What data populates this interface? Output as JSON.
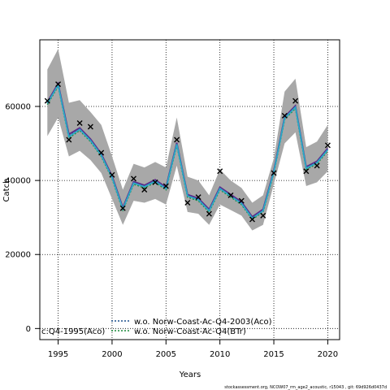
{
  "chart_data": {
    "type": "line",
    "title": "",
    "xlabel": "Years",
    "ylabel": "Catch",
    "xlim": [
      1993.3,
      2021.1
    ],
    "ylim": [
      -3000,
      78000
    ],
    "xticks": [
      1995,
      2000,
      2005,
      2010,
      2015,
      2020
    ],
    "yticks": [
      0,
      20000,
      40000,
      60000
    ],
    "grid": true,
    "band": {
      "years": [
        1994,
        1995,
        1996,
        1997,
        1998,
        1999,
        2000,
        2001,
        2002,
        2003,
        2004,
        2005,
        2006,
        2007,
        2008,
        2009,
        2010,
        2011,
        2012,
        2013,
        2014,
        2015,
        2016,
        2017,
        2018,
        2019,
        2020
      ],
      "upper": [
        70000,
        75500,
        61000,
        61700,
        58500,
        55000,
        46500,
        37500,
        44500,
        43500,
        45000,
        43500,
        57000,
        41000,
        40000,
        36000,
        43000,
        40000,
        38000,
        34000,
        36000,
        46000,
        64000,
        67500,
        49000,
        50500,
        55000
      ],
      "lower": [
        52000,
        57000,
        46500,
        48000,
        45500,
        42000,
        35000,
        28000,
        34500,
        34000,
        35000,
        33500,
        44000,
        31500,
        31000,
        28000,
        33500,
        32000,
        30500,
        26500,
        28000,
        39000,
        50000,
        53000,
        38500,
        39500,
        42500
      ]
    },
    "series": [
      {
        "name": "w.o. Norw-Coast-Ac-Q4-2003(Aco)",
        "color": "#1b4e8c",
        "style": "dotted",
        "years": [
          1994,
          1995,
          1996,
          1997,
          1998,
          1999,
          2000,
          2001,
          2002,
          2003,
          2004,
          2005,
          2006,
          2007,
          2008,
          2009,
          2010,
          2011,
          2012,
          2013,
          2014,
          2015,
          2016,
          2017,
          2018,
          2019,
          2020
        ],
        "values": [
          61000,
          66000,
          52000,
          54000,
          51000,
          47000,
          41000,
          32500,
          39500,
          38500,
          40000,
          38000,
          50000,
          36000,
          35000,
          32000,
          38000,
          36000,
          34000,
          30000,
          32000,
          42500,
          57000,
          60000,
          43500,
          45000,
          48500
        ]
      },
      {
        "name": "w.o. Norw-Coast-Ac-Q4(BTr)",
        "color": "#1a8a3a",
        "style": "dotted",
        "years": [
          1994,
          1995,
          1996,
          1997,
          1998,
          1999,
          2000,
          2001,
          2002,
          2003,
          2004,
          2005,
          2006,
          2007,
          2008,
          2009,
          2010,
          2011,
          2012,
          2013,
          2014,
          2015,
          2016,
          2017,
          2018,
          2019,
          2020
        ],
        "values": [
          60500,
          65500,
          51500,
          53500,
          50500,
          46500,
          40500,
          32000,
          39000,
          38000,
          39500,
          37500,
          49500,
          35500,
          34500,
          31500,
          37500,
          35500,
          33500,
          29500,
          31500,
          42000,
          56500,
          59500,
          43000,
          44500,
          48000
        ]
      },
      {
        "name": "c:Q4-1995(Aco)",
        "color": "#5a2a8a",
        "style": "solid",
        "years": [
          1994,
          1995,
          1996,
          1997,
          1998,
          1999,
          2000,
          2001,
          2002,
          2003,
          2004,
          2005,
          2006,
          2007,
          2008,
          2009,
          2010,
          2011,
          2012,
          2013,
          2014,
          2015,
          2016,
          2017,
          2018,
          2019,
          2020
        ],
        "values": [
          61200,
          66200,
          52500,
          54200,
          51200,
          47200,
          41200,
          32700,
          39700,
          38700,
          40200,
          38200,
          50200,
          36200,
          35200,
          32200,
          38200,
          36200,
          34200,
          30200,
          32200,
          42700,
          57200,
          60200,
          43700,
          45200,
          48700
        ]
      },
      {
        "name": "",
        "color": "#2aa8c8",
        "style": "solid",
        "years": [
          1994,
          1995,
          1996,
          1997,
          1998,
          1999,
          2000,
          2001,
          2002,
          2003,
          2004,
          2005,
          2006,
          2007,
          2008,
          2009,
          2010,
          2011,
          2012,
          2013,
          2014,
          2015,
          2016,
          2017,
          2018,
          2019,
          2020
        ],
        "values": [
          60800,
          65800,
          51800,
          53800,
          50800,
          46800,
          40800,
          32300,
          39300,
          38300,
          39800,
          37800,
          49800,
          35800,
          34800,
          31800,
          37800,
          35800,
          33800,
          29800,
          31800,
          42300,
          56800,
          59800,
          43300,
          44800,
          48300
        ]
      }
    ],
    "observed": {
      "years": [
        1994,
        1995,
        1996,
        1997,
        1998,
        1999,
        2000,
        2001,
        2002,
        2003,
        2004,
        2005,
        2006,
        2007,
        2008,
        2009,
        2010,
        2011,
        2012,
        2013,
        2014,
        2015,
        2016,
        2017,
        2018,
        2019,
        2020
      ],
      "values": [
        61500,
        66000,
        51000,
        55500,
        54500,
        47500,
        41500,
        32500,
        40500,
        37500,
        39500,
        38500,
        51000,
        34000,
        35500,
        31000,
        42500,
        36000,
        34500,
        29500,
        30500,
        42000,
        57500,
        61500,
        42500,
        44000,
        49500
      ]
    },
    "legend": {
      "entries": [
        "w.o. Norw-Coast-Ac-Q4-2003(Aco)",
        "w.o. Norw-Coast-Ac-Q4(BTr)"
      ],
      "left_entry": "c:Q4-1995(Aco)",
      "placement": "bottom-center"
    },
    "footer": "stockassessment.org, NCOW07_rm_age2_acoustic, r15043 , git: 69d926d0437d"
  }
}
